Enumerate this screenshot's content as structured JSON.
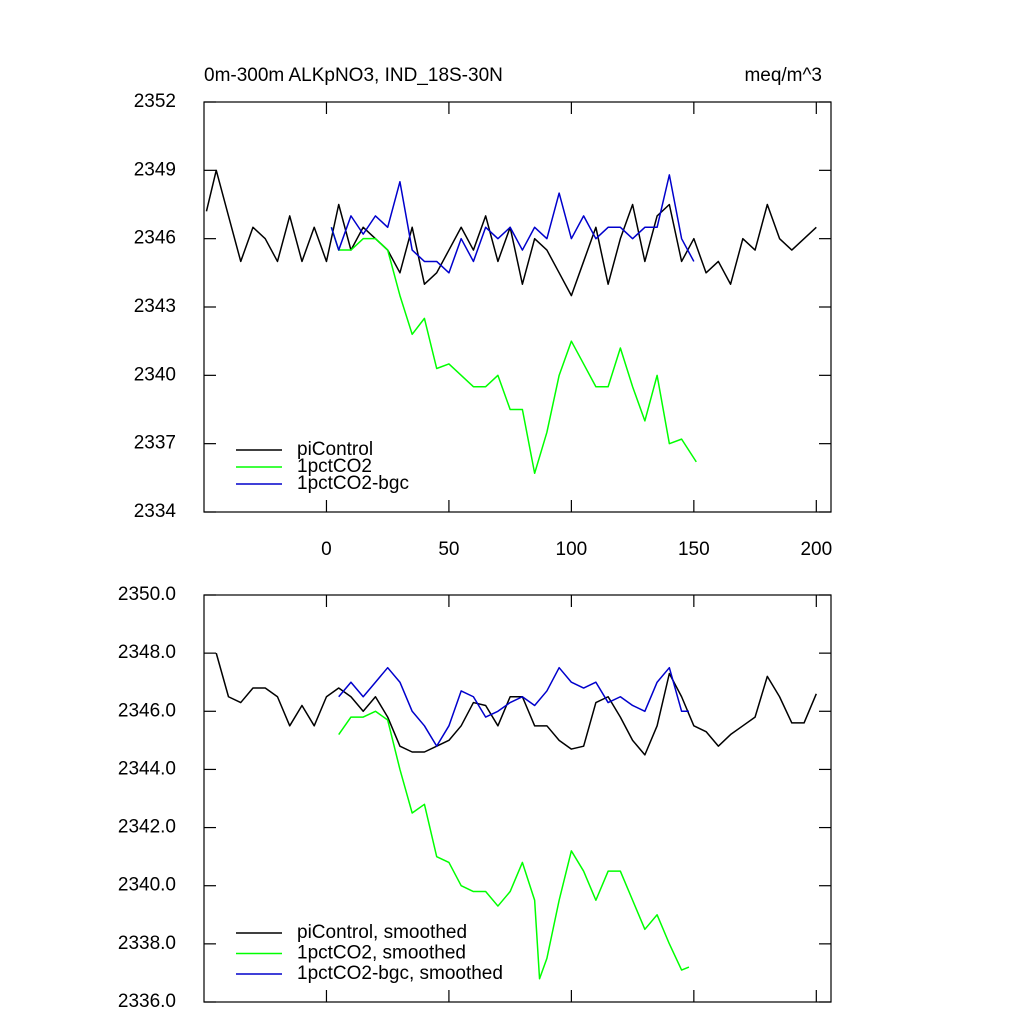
{
  "chart_data": [
    {
      "type": "line",
      "title": "0m-300m ALKpNO3, IND_18S-30N",
      "unit_label": "meq/m^3",
      "xlim": [
        -50,
        206
      ],
      "xticks": [
        0,
        50,
        100,
        150,
        200
      ],
      "show_xtick_labels": true,
      "ylim": [
        2334,
        2352
      ],
      "yticks": [
        2334,
        2337,
        2340,
        2343,
        2346,
        2349,
        2352
      ],
      "legend": "lower left",
      "series": [
        {
          "name": "piControl",
          "color": "#000000",
          "x": [
            -49,
            -45,
            -40,
            -35,
            -30,
            -25,
            -20,
            -15,
            -10,
            -5,
            0,
            5,
            10,
            15,
            20,
            25,
            30,
            35,
            40,
            45,
            50,
            55,
            60,
            65,
            70,
            75,
            80,
            85,
            90,
            95,
            100,
            105,
            110,
            115,
            120,
            125,
            130,
            135,
            140,
            145,
            150,
            155,
            160,
            165,
            170,
            175,
            180,
            185,
            190,
            195,
            200
          ],
          "values": [
            2347.2,
            2349,
            2347,
            2345,
            2346.5,
            2346,
            2345,
            2347,
            2345,
            2346.5,
            2345,
            2347.5,
            2345.5,
            2346.5,
            2346,
            2345.5,
            2344.5,
            2346.5,
            2344,
            2344.5,
            2345.5,
            2346.5,
            2345.5,
            2347,
            2345,
            2346.5,
            2344,
            2346,
            2345.5,
            2344.5,
            2343.5,
            2345,
            2346.5,
            2344,
            2346,
            2347.5,
            2345,
            2347,
            2347.5,
            2345,
            2346,
            2344.5,
            2345,
            2344,
            2346,
            2345.5,
            2347.5,
            2346,
            2345.5,
            2346,
            2346.5
          ]
        },
        {
          "name": "1pctCO2",
          "color": "#00ff00",
          "x": [
            2,
            5,
            10,
            15,
            20,
            25,
            30,
            35,
            40,
            45,
            50,
            55,
            60,
            65,
            70,
            75,
            80,
            85,
            90,
            95,
            100,
            105,
            110,
            115,
            120,
            125,
            130,
            135,
            140,
            145,
            151
          ],
          "values": [
            2346.5,
            2345.5,
            2345.5,
            2346,
            2346,
            2345.5,
            2343.5,
            2341.8,
            2342.5,
            2340.3,
            2340.5,
            2340,
            2339.5,
            2339.5,
            2340,
            2338.5,
            2338.5,
            2335.7,
            2337.5,
            2340,
            2341.5,
            2340.5,
            2339.5,
            2339.5,
            2341.2,
            2339.5,
            2338,
            2340,
            2337,
            2337.2,
            2336.2
          ]
        },
        {
          "name": "1pctCO2-bgc",
          "color": "#0000cc",
          "x": [
            2,
            5,
            10,
            15,
            20,
            25,
            30,
            35,
            40,
            45,
            50,
            55,
            60,
            65,
            70,
            75,
            80,
            85,
            90,
            95,
            100,
            105,
            110,
            115,
            120,
            125,
            130,
            135,
            140,
            145,
            150
          ],
          "values": [
            2346.5,
            2345.5,
            2347,
            2346.2,
            2347,
            2346.5,
            2348.5,
            2345.5,
            2345,
            2345,
            2344.5,
            2346,
            2345,
            2346.5,
            2346,
            2346.5,
            2345.5,
            2346.5,
            2346,
            2348,
            2346,
            2347,
            2346,
            2346.5,
            2346.5,
            2346,
            2346.5,
            2346.5,
            2348.8,
            2346,
            2345
          ]
        }
      ]
    },
    {
      "type": "line",
      "xlim": [
        -50,
        206
      ],
      "xticks": [
        0,
        50,
        100,
        150,
        200
      ],
      "show_xtick_labels": false,
      "ylim": [
        2336,
        2350
      ],
      "yticks": [
        {
          "value": 2336,
          "label": "2336.0"
        },
        {
          "value": 2338,
          "label": "2338.0"
        },
        {
          "value": 2340,
          "label": "2340.0"
        },
        {
          "value": 2342,
          "label": "2342.0"
        },
        {
          "value": 2344,
          "label": "2344.0"
        },
        {
          "value": 2346,
          "label": "2346.0"
        },
        {
          "value": 2348,
          "label": "2348.0"
        },
        {
          "value": 2350,
          "label": "2350.0"
        }
      ],
      "legend": "lower left",
      "series": [
        {
          "name": "piControl, smoothed",
          "color": "#000000",
          "x": [
            -45,
            -40,
            -35,
            -30,
            -25,
            -20,
            -15,
            -10,
            -5,
            0,
            5,
            10,
            15,
            20,
            25,
            30,
            35,
            40,
            45,
            50,
            55,
            60,
            65,
            70,
            75,
            80,
            85,
            90,
            95,
            100,
            105,
            110,
            115,
            120,
            125,
            130,
            135,
            140,
            145,
            150,
            155,
            160,
            165,
            170,
            175,
            180,
            185,
            190,
            195,
            200
          ],
          "values": [
            2348,
            2346.5,
            2346.3,
            2346.8,
            2346.8,
            2346.5,
            2345.5,
            2346.2,
            2345.5,
            2346.5,
            2346.8,
            2346.5,
            2346,
            2346.5,
            2345.8,
            2344.8,
            2344.6,
            2344.6,
            2344.8,
            2345,
            2345.5,
            2346.3,
            2346.2,
            2345.5,
            2346.5,
            2346.5,
            2345.5,
            2345.5,
            2345,
            2344.7,
            2344.8,
            2346.3,
            2346.5,
            2345.8,
            2345,
            2344.5,
            2345.5,
            2347.3,
            2346.5,
            2345.5,
            2345.3,
            2344.8,
            2345.2,
            2345.5,
            2345.8,
            2347.2,
            2346.5,
            2345.6,
            2345.6,
            2346.6
          ]
        },
        {
          "name": "1pctCO2, smoothed",
          "color": "#00ff00",
          "x": [
            5,
            10,
            15,
            20,
            25,
            30,
            35,
            40,
            45,
            50,
            55,
            60,
            65,
            70,
            75,
            80,
            85,
            87,
            90,
            95,
            100,
            105,
            110,
            115,
            120,
            125,
            130,
            135,
            140,
            145,
            148
          ],
          "values": [
            2345.2,
            2345.8,
            2345.8,
            2346,
            2345.7,
            2344,
            2342.5,
            2342.8,
            2341,
            2340.8,
            2340,
            2339.8,
            2339.8,
            2339.3,
            2339.8,
            2340.8,
            2339.5,
            2336.8,
            2337.5,
            2339.5,
            2341.2,
            2340.5,
            2339.5,
            2340.5,
            2340.5,
            2339.5,
            2338.5,
            2339,
            2338,
            2337.1,
            2337.2
          ]
        },
        {
          "name": "1pctCO2-bgc, smoothed",
          "color": "#0000cc",
          "x": [
            5,
            10,
            15,
            20,
            25,
            30,
            35,
            40,
            45,
            50,
            55,
            60,
            65,
            70,
            75,
            80,
            85,
            90,
            95,
            100,
            105,
            110,
            115,
            120,
            125,
            130,
            135,
            140,
            145,
            148
          ],
          "values": [
            2346.5,
            2347,
            2346.5,
            2347,
            2347.5,
            2347,
            2346,
            2345.5,
            2344.8,
            2345.5,
            2346.7,
            2346.5,
            2345.8,
            2346,
            2346.3,
            2346.5,
            2346.2,
            2346.7,
            2347.5,
            2347,
            2346.8,
            2347,
            2346.3,
            2346.5,
            2346.2,
            2346,
            2347,
            2347.5,
            2346,
            2346
          ]
        }
      ]
    }
  ]
}
